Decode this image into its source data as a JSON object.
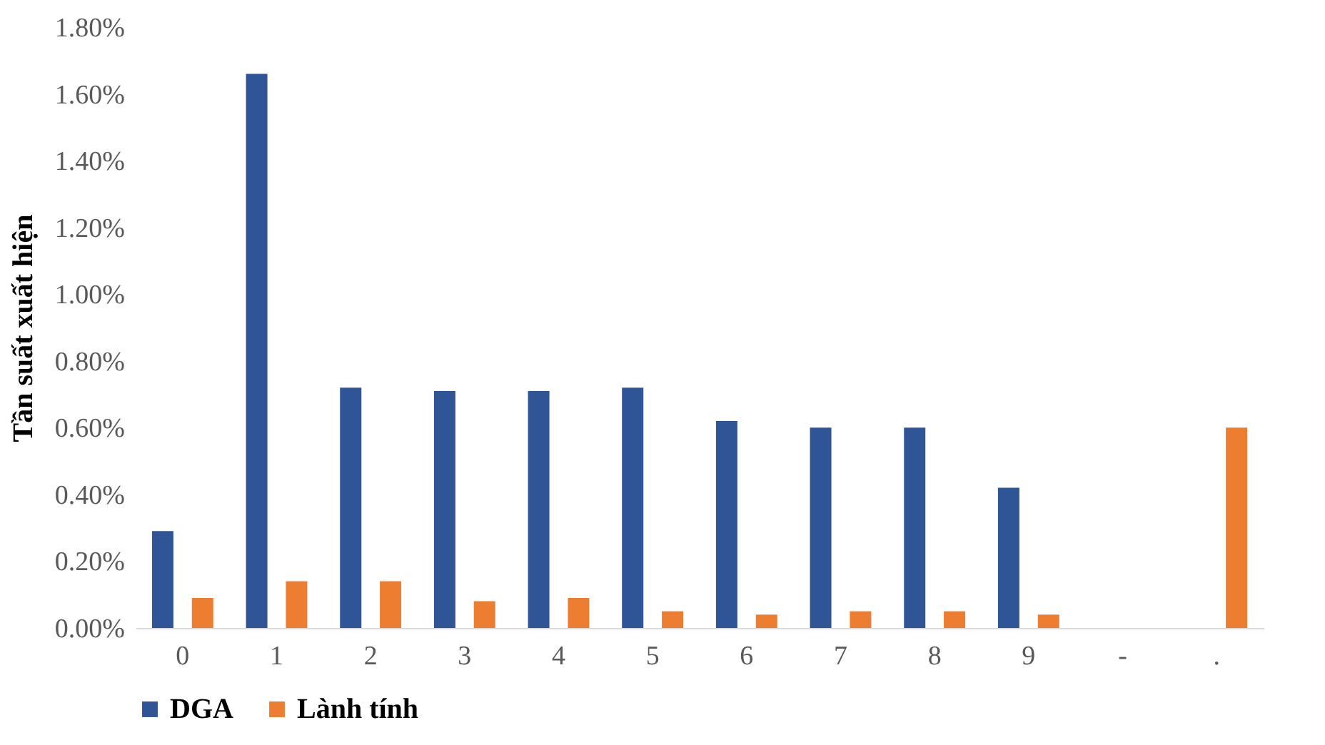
{
  "chart_data": {
    "type": "bar",
    "ylabel": "Tần suất xuất hiện",
    "categories": [
      "0",
      "1",
      "2",
      "3",
      "4",
      "5",
      "6",
      "7",
      "8",
      "9",
      "-",
      "."
    ],
    "series": [
      {
        "name": "DGA",
        "color": "#2f5597",
        "values": [
          0.29,
          1.66,
          0.72,
          0.71,
          0.71,
          0.72,
          0.62,
          0.6,
          0.6,
          0.42,
          0,
          0
        ]
      },
      {
        "name": "Lành tính",
        "color": "#ed7d31",
        "values": [
          0.09,
          0.14,
          0.14,
          0.08,
          0.09,
          0.05,
          0.04,
          0.05,
          0.05,
          0.04,
          0,
          0.6
        ]
      }
    ],
    "ylim": [
      0,
      1.8
    ],
    "yticks": [
      {
        "value": 0,
        "label": "0.00%"
      },
      {
        "value": 0.2,
        "label": "0.20%"
      },
      {
        "value": 0.4,
        "label": "0.40%"
      },
      {
        "value": 0.6,
        "label": "0.60%"
      },
      {
        "value": 0.8,
        "label": "0.80%"
      },
      {
        "value": 1.0,
        "label": "1.00%"
      },
      {
        "value": 1.2,
        "label": "1.20%"
      },
      {
        "value": 1.4,
        "label": "1.40%"
      },
      {
        "value": 1.6,
        "label": "1.60%"
      },
      {
        "value": 1.8,
        "label": "1.80%"
      }
    ],
    "grid": false,
    "legend": "bottom"
  }
}
